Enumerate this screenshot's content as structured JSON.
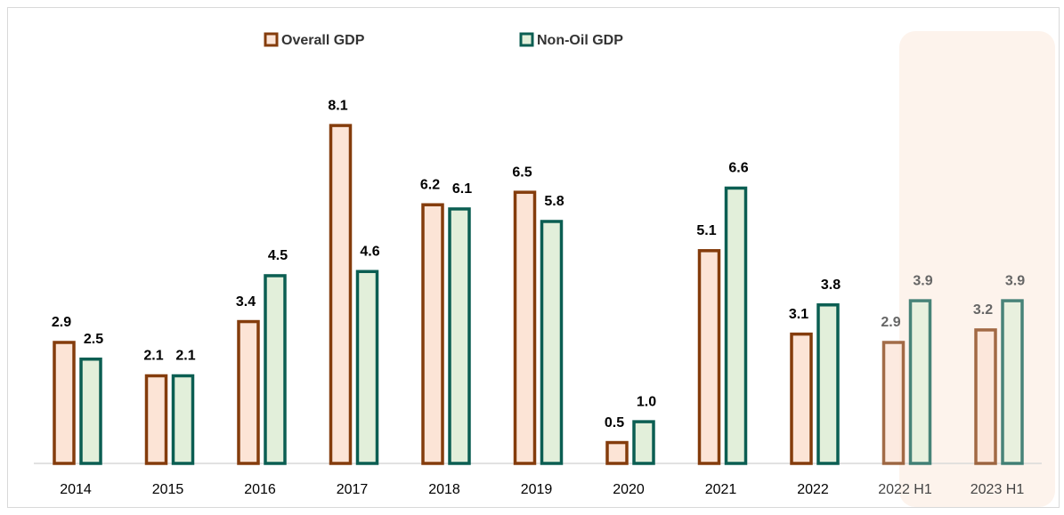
{
  "chart_data": {
    "type": "bar",
    "categories": [
      "2014",
      "2015",
      "2016",
      "2017",
      "2018",
      "2019",
      "2020",
      "2021",
      "2022",
      "2022 H1",
      "2023 H1"
    ],
    "series": [
      {
        "name": "Overall GDP",
        "color": "#843c0c",
        "fill": "#fce4d6",
        "values": [
          2.9,
          2.1,
          3.4,
          8.1,
          6.2,
          6.5,
          0.5,
          5.1,
          3.1,
          2.9,
          3.2
        ]
      },
      {
        "name": "Non-Oil GDP",
        "color": "#0b5e52",
        "fill": "#e2efda",
        "values": [
          2.5,
          2.1,
          4.5,
          4.6,
          6.1,
          5.8,
          1,
          6.6,
          3.8,
          3.9,
          3.9
        ],
        "value_labels": [
          "2.5",
          "2.1",
          "4.5",
          "4.6",
          "6.1",
          "5.8",
          "1.0",
          "6.6",
          "3.8",
          "3.9",
          "3.9"
        ]
      }
    ],
    "ylim": [
      0,
      10
    ],
    "legend": "top"
  }
}
